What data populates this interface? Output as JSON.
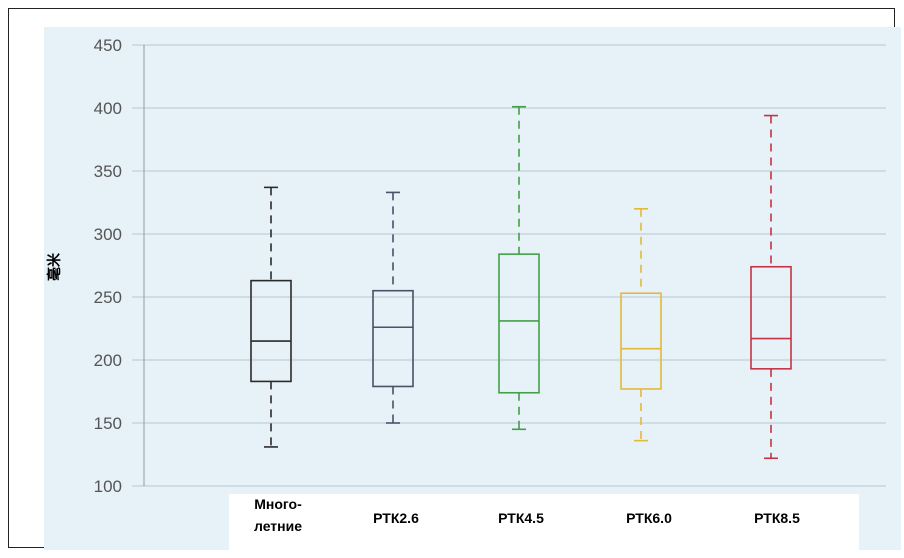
{
  "chart_data": {
    "type": "boxplot",
    "ylabel": "毫米",
    "ylim": [
      100,
      450
    ],
    "yticks": [
      100,
      150,
      200,
      250,
      300,
      350,
      400,
      450
    ],
    "grid": true,
    "categories": [
      "Много-\nлетние",
      "РТК2.6",
      "РТК4.5",
      "РТК6.0",
      "РТК8.5"
    ],
    "category_lines": [
      [
        "Много-",
        "летние"
      ],
      [
        "РТК2.6"
      ],
      [
        "РТК4.5"
      ],
      [
        "РТК6.0"
      ],
      [
        "РТК8.5"
      ]
    ],
    "boxes": [
      {
        "min": 131,
        "q1": 183,
        "median": 215,
        "q3": 263,
        "max": 337,
        "color": "#2b2b2b"
      },
      {
        "min": 150,
        "q1": 179,
        "median": 226,
        "q3": 255,
        "max": 333,
        "color": "#4a5168"
      },
      {
        "min": 145,
        "q1": 174,
        "median": 231,
        "q3": 284,
        "max": 401,
        "color": "#44a048"
      },
      {
        "min": 136,
        "q1": 177,
        "median": 209,
        "q3": 253,
        "max": 320,
        "color": "#e3b93a"
      },
      {
        "min": 122,
        "q1": 193,
        "median": 217,
        "q3": 274,
        "max": 394,
        "color": "#c43444"
      }
    ]
  }
}
